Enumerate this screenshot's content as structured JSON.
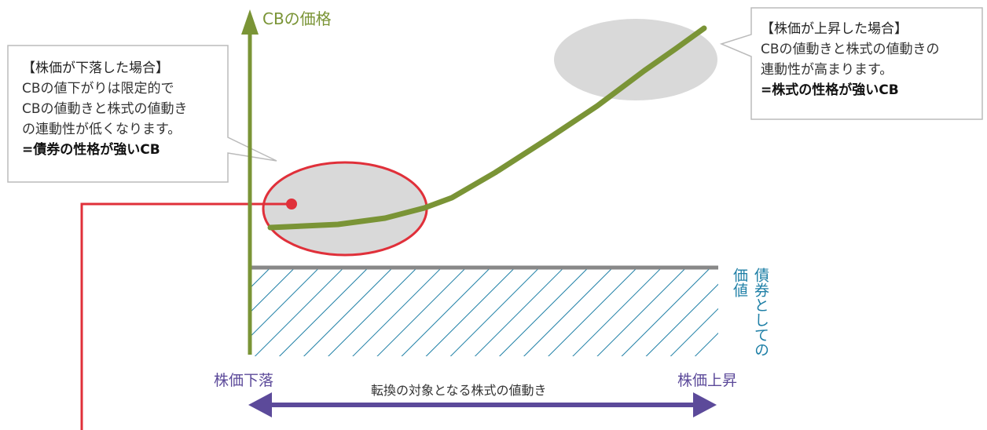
{
  "y_axis_title": "CBの価格",
  "left_callout": {
    "heading": "【株価が下落した場合】",
    "lines": [
      "CBの値下がりは限定的で",
      "CBの値動きと株式の値動き",
      "の連動性が低くなります。"
    ],
    "conclusion": "=債券の性格が強いCB"
  },
  "right_callout": {
    "heading": "【株価が上昇した場合】",
    "lines": [
      "CBの値動きと株式の値動きの",
      "連動性が高まります。"
    ],
    "conclusion": "=株式の性格が強いCB"
  },
  "bond_value_label_col1": "債券としての",
  "bond_value_label_col2": "価値",
  "x_axis": {
    "left_label": "株価下落",
    "right_label": "株価上昇",
    "center_label": "転換の対象となる株式の値動き"
  },
  "colors": {
    "cb_curve": "#7a9436",
    "bond_hatch": "#1e7fa6",
    "arrow": "#5c4a9a",
    "highlight_ring": "#e0303a",
    "bubble_fill": "#d9d9d9"
  }
}
